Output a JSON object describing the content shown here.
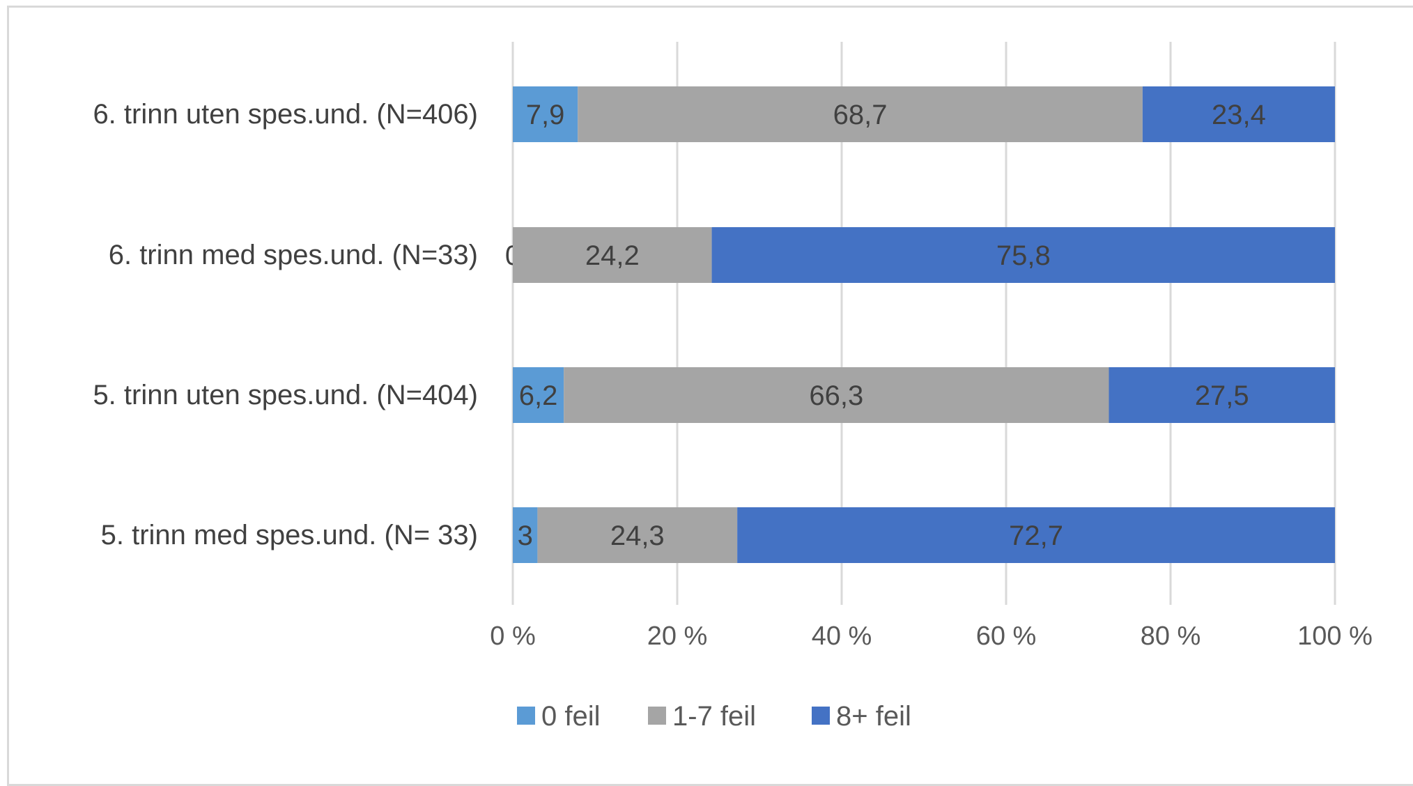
{
  "chart_data": {
    "type": "bar",
    "orientation": "horizontal",
    "stacked": true,
    "percent_stacked": true,
    "categories": [
      "6. trinn uten spes.und. (N=406)",
      "6. trinn med spes.und. (N=33)",
      "5. trinn uten spes.und. (N=404)",
      "5. trinn med spes.und. (N= 33)"
    ],
    "series": [
      {
        "name": "0 feil",
        "color": "#5b9bd5",
        "values": [
          7.9,
          0,
          6.2,
          3
        ]
      },
      {
        "name": "1-7 feil",
        "color": "#a5a5a5",
        "values": [
          68.7,
          24.2,
          66.3,
          24.3
        ]
      },
      {
        "name": "8+ feil",
        "color": "#4472c4",
        "values": [
          23.4,
          75.8,
          27.5,
          72.7
        ]
      }
    ],
    "data_labels": [
      [
        "7,9",
        "0",
        "6,2",
        "3"
      ],
      [
        "68,7",
        "24,2",
        "66,3",
        "24,3"
      ],
      [
        "23,4",
        "75,8",
        "27,5",
        "72,7"
      ]
    ],
    "xlim": [
      0,
      100
    ],
    "xticks": [
      "0 %",
      "20 %",
      "40 %",
      "60 %",
      "80 %",
      "100 %"
    ],
    "grid": true,
    "legend_position": "bottom",
    "title": "",
    "xlabel": "",
    "ylabel": ""
  }
}
